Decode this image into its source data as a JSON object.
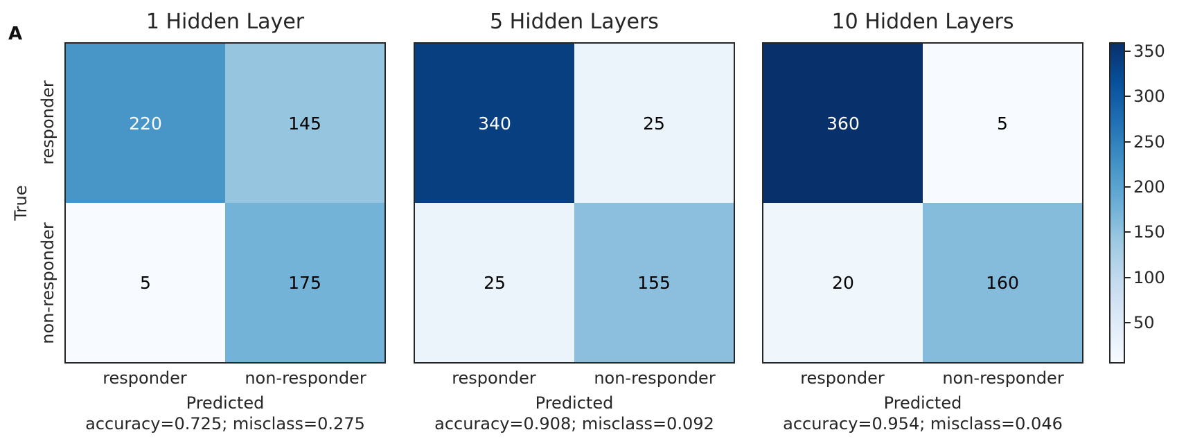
{
  "figure": {
    "panel_letter": "A"
  },
  "chart_data": [
    {
      "type": "heatmap",
      "title": "1 Hidden Layer",
      "xlabel": "Predicted",
      "ylabel": "True",
      "caption": "accuracy=0.725; misclass=0.275",
      "x_tick_labels": [
        "responder",
        "non-responder"
      ],
      "y_tick_labels": [
        "responder",
        "non-responder"
      ],
      "matrix": [
        [
          220,
          145
        ],
        [
          5,
          175
        ]
      ]
    },
    {
      "type": "heatmap",
      "title": "5 Hidden Layers",
      "xlabel": "Predicted",
      "ylabel": "",
      "caption": "accuracy=0.908; misclass=0.092",
      "x_tick_labels": [
        "responder",
        "non-responder"
      ],
      "y_tick_labels": [],
      "matrix": [
        [
          340,
          25
        ],
        [
          25,
          155
        ]
      ]
    },
    {
      "type": "heatmap",
      "title": "10 Hidden Layers",
      "xlabel": "Predicted",
      "ylabel": "",
      "caption": "accuracy=0.954; misclass=0.046",
      "x_tick_labels": [
        "responder",
        "non-responder"
      ],
      "y_tick_labels": [],
      "matrix": [
        [
          360,
          5
        ],
        [
          20,
          160
        ]
      ]
    }
  ],
  "colorbar": {
    "colormap": "Blues",
    "min": 5,
    "max": 360,
    "ticks": [
      "50",
      "100",
      "150",
      "200",
      "250",
      "300",
      "350"
    ],
    "colors": [
      "#f7fbff",
      "#deebf7",
      "#c6dbef",
      "#9ecae1",
      "#6baed6",
      "#4292c6",
      "#2171b5",
      "#08519c",
      "#08306b"
    ]
  }
}
